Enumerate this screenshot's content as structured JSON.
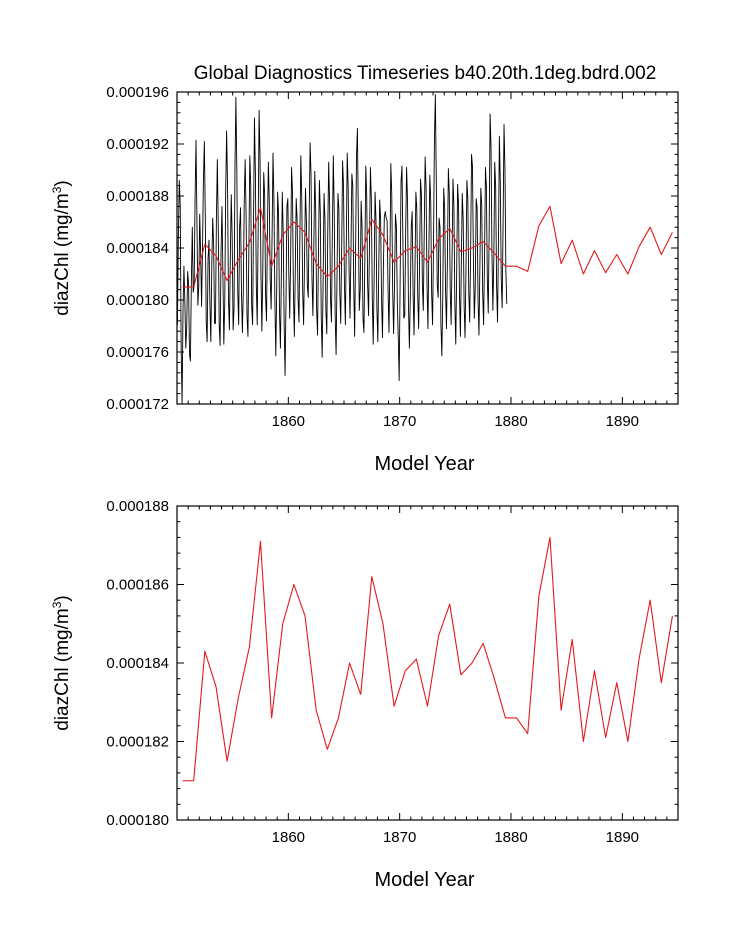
{
  "title": "Global Diagnostics Timeseries b40.20th.1deg.bdrd.002",
  "colors": {
    "monthly": "#000000",
    "annual": "#e31a1c",
    "axes": "#000000",
    "background": "#ffffff"
  },
  "chart_data": [
    {
      "type": "line",
      "title": "Global Diagnostics Timeseries b40.20th.1deg.bdrd.002",
      "xlabel": "Model Year",
      "ylabel_main": "diazChl (mg/m",
      "ylabel_sup": "3",
      "ylabel_close": ")",
      "xlim": [
        1850,
        1895
      ],
      "ylim": [
        0.000172,
        0.000196
      ],
      "x_ticks": [
        1860,
        1870,
        1880,
        1890
      ],
      "x_tick_labels": [
        "1860",
        "1870",
        "1880",
        "1890"
      ],
      "y_ticks": [
        0.000172,
        0.000176,
        0.00018,
        0.000184,
        0.000188,
        0.000192,
        0.000196
      ],
      "y_tick_labels": [
        "0.000172",
        "0.000176",
        "0.000180",
        "0.000184",
        "0.000188",
        "0.000192",
        "0.000196"
      ],
      "series": [
        {
          "name": "monthly",
          "color": "#000000",
          "x_start": 1850.04,
          "x_step": 0.08333,
          "values": [
            0.0001781,
            0.0001849,
            0.0001892,
            0.0001873,
            0.0001763,
            0.000172,
            0.0001792,
            0.0001826,
            0.0001798,
            0.0001763,
            0.000178,
            0.0001822,
            0.0001812,
            0.0001758,
            0.0001753,
            0.0001814,
            0.0001856,
            0.0001806,
            0.0001811,
            0.0001878,
            0.0001923,
            0.0001862,
            0.0001796,
            0.0001811,
            0.0001866,
            0.0001836,
            0.0001795,
            0.0001838,
            0.0001893,
            0.0001922,
            0.0001864,
            0.0001783,
            0.0001768,
            0.0001832,
            0.0001846,
            0.0001796,
            0.0001768,
            0.0001826,
            0.0001863,
            0.0001843,
            0.0001782,
            0.0001782,
            0.0001863,
            0.0001908,
            0.0001856,
            0.0001781,
            0.0001765,
            0.0001838,
            0.0001872,
            0.0001819,
            0.0001766,
            0.0001798,
            0.0001884,
            0.000193,
            0.0001888,
            0.0001801,
            0.0001777,
            0.0001833,
            0.0001881,
            0.0001848,
            0.0001777,
            0.0001794,
            0.0001902,
            0.0001956,
            0.0001901,
            0.0001806,
            0.0001781,
            0.0001856,
            0.0001871,
            0.0001806,
            0.0001775,
            0.0001807,
            0.0001876,
            0.0001908,
            0.0001865,
            0.0001787,
            0.0001772,
            0.0001841,
            0.0001911,
            0.0001888,
            0.0001796,
            0.0001781,
            0.000186,
            0.000194,
            0.0001898,
            0.0001812,
            0.0001781,
            0.0001853,
            0.0001946,
            0.0001911,
            0.0001821,
            0.0001776,
            0.0001822,
            0.0001898,
            0.0001881,
            0.0001803,
            0.0001784,
            0.0001854,
            0.0001906,
            0.0001876,
            0.0001816,
            0.0001793,
            0.0001849,
            0.0001913,
            0.0001877,
            0.0001801,
            0.0001757,
            0.0001808,
            0.0001883,
            0.0001866,
            0.000179,
            0.0001763,
            0.000182,
            0.0001883,
            0.0001852,
            0.0001782,
            0.0001742,
            0.0001798,
            0.0001872,
            0.0001878,
            0.0001822,
            0.0001786,
            0.0001831,
            0.0001902,
            0.0001883,
            0.0001806,
            0.0001772,
            0.0001822,
            0.0001878,
            0.0001862,
            0.0001801,
            0.0001783,
            0.0001851,
            0.0001911,
            0.0001879,
            0.0001806,
            0.0001781,
            0.0001833,
            0.0001886,
            0.0001861,
            0.0001811,
            0.0001802,
            0.0001866,
            0.0001921,
            0.0001896,
            0.0001817,
            0.0001788,
            0.0001841,
            0.0001899,
            0.0001868,
            0.0001793,
            0.0001773,
            0.0001836,
            0.0001892,
            0.0001867,
            0.0001787,
            0.0001756,
            0.0001813,
            0.0001882,
            0.0001862,
            0.0001792,
            0.0001774,
            0.0001851,
            0.0001906,
            0.0001875,
            0.0001801,
            0.0001783,
            0.0001853,
            0.0001911,
            0.0001868,
            0.0001788,
            0.0001758,
            0.0001818,
            0.0001882,
            0.000187,
            0.0001806,
            0.0001782,
            0.0001838,
            0.0001907,
            0.0001888,
            0.0001812,
            0.0001781,
            0.0001842,
            0.0001913,
            0.0001888,
            0.0001822,
            0.0001786,
            0.0001836,
            0.0001897,
            0.0001888,
            0.0001811,
            0.0001772,
            0.0001837,
            0.0001911,
            0.0001932,
            0.0001861,
            0.0001792,
            0.0001808,
            0.0001876,
            0.0001856,
            0.0001786,
            0.0001775,
            0.0001832,
            0.0001903,
            0.0001881,
            0.0001812,
            0.0001788,
            0.0001843,
            0.0001902,
            0.0001878,
            0.0001803,
            0.0001766,
            0.0001816,
            0.0001883,
            0.0001862,
            0.0001793,
            0.0001768,
            0.0001826,
            0.0001877,
            0.0001862,
            0.0001801,
            0.0001771,
            0.0001826,
            0.0001864,
            0.0001868,
            0.0001863,
            0.0001861,
            0.0001808,
            0.0001775,
            0.0001828,
            0.0001905,
            0.0001882,
            0.0001807,
            0.0001774,
            0.0001813,
            0.0001866,
            0.0001856,
            0.0001798,
            0.0001771,
            0.0001738,
            0.0001812,
            0.0001891,
            0.0001903,
            0.0001846,
            0.0001786,
            0.0001788,
            0.0001852,
            0.0001902,
            0.0001876,
            0.0001796,
            0.0001763,
            0.0001803,
            0.0001856,
            0.0001868,
            0.0001805,
            0.0001773,
            0.0001823,
            0.0001883,
            0.000187,
            0.0001803,
            0.0001778,
            0.0001831,
            0.0001893,
            0.0001881,
            0.0001813,
            0.0001792,
            0.0001852,
            0.000191,
            0.0001886,
            0.0001812,
            0.0001778,
            0.0001838,
            0.0001896,
            0.0001876,
            0.0001805,
            0.0001781,
            0.0001843,
            0.0001923,
            0.0001958,
            0.0001892,
            0.0001812,
            0.0001802,
            0.0001863,
            0.0001856,
            0.0001781,
            0.0001757,
            0.0001803,
            0.0001886,
            0.0001871,
            0.0001806,
            0.0001778,
            0.0001832,
            0.0001901,
            0.0001883,
            0.0001808,
            0.0001781,
            0.0001833,
            0.0001893,
            0.0001872,
            0.0001798,
            0.0001766,
            0.0001823,
            0.0001889,
            0.0001873,
            0.0001803,
            0.0001772,
            0.0001828,
            0.0001882,
            0.0001862,
            0.0001796,
            0.0001771,
            0.0001823,
            0.0001892,
            0.0001878,
            0.0001806,
            0.0001783,
            0.0001836,
            0.0001912,
            0.0001903,
            0.0001833,
            0.0001786,
            0.0001809,
            0.0001878,
            0.0001871,
            0.0001801,
            0.0001773,
            0.0001826,
            0.0001886,
            0.0001873,
            0.0001806,
            0.0001781,
            0.0001833,
            0.0001902,
            0.0001887,
            0.0001816,
            0.000179,
            0.0001853,
            0.0001943,
            0.0001918,
            0.0001836,
            0.0001792,
            0.0001831,
            0.0001906,
            0.0001887,
            0.0001811,
            0.0001783,
            0.0001843,
            0.0001926,
            0.000189,
            0.0001816,
            0.0001794,
            0.0001858,
            0.0001935,
            0.0001902,
            0.0001822,
            0.0001797
          ]
        },
        {
          "name": "annual",
          "color": "#e31a1c",
          "x": [
            1850.5,
            1851.5,
            1852.5,
            1853.5,
            1854.5,
            1855.5,
            1856.5,
            1857.5,
            1858.5,
            1859.5,
            1860.5,
            1861.5,
            1862.5,
            1863.5,
            1864.5,
            1865.5,
            1866.5,
            1867.5,
            1868.5,
            1869.5,
            1870.5,
            1871.5,
            1872.5,
            1873.5,
            1874.5,
            1875.5,
            1876.5,
            1877.5,
            1878.5,
            1879.5,
            1880.5,
            1881.5,
            1882.5,
            1883.5,
            1884.5,
            1885.5,
            1886.5,
            1887.5,
            1888.5,
            1889.5,
            1890.5,
            1891.5,
            1892.5,
            1893.5,
            1894.5
          ],
          "values": [
            0.000181,
            0.000181,
            0.0001843,
            0.0001834,
            0.0001815,
            0.0001831,
            0.0001844,
            0.0001871,
            0.0001826,
            0.000185,
            0.000186,
            0.0001852,
            0.0001828,
            0.0001818,
            0.0001826,
            0.000184,
            0.0001832,
            0.0001862,
            0.000185,
            0.0001829,
            0.0001838,
            0.0001841,
            0.0001829,
            0.0001847,
            0.0001855,
            0.0001837,
            0.000184,
            0.0001845,
            0.0001836,
            0.0001826,
            0.0001826,
            0.0001822,
            0.0001857,
            0.0001872,
            0.0001828,
            0.0001846,
            0.000182,
            0.0001838,
            0.0001821,
            0.0001835,
            0.000182,
            0.0001841,
            0.0001856,
            0.0001835,
            0.0001852
          ]
        }
      ]
    },
    {
      "type": "line",
      "title": "",
      "xlabel": "Model Year",
      "ylabel_main": "diazChl (mg/m",
      "ylabel_sup": "3",
      "ylabel_close": ")",
      "xlim": [
        1850,
        1895
      ],
      "ylim": [
        0.00018,
        0.000188
      ],
      "x_ticks": [
        1860,
        1870,
        1880,
        1890
      ],
      "x_tick_labels": [
        "1860",
        "1870",
        "1880",
        "1890"
      ],
      "y_ticks": [
        0.00018,
        0.000182,
        0.000184,
        0.000186,
        0.000188
      ],
      "y_tick_labels": [
        "0.000180",
        "0.000182",
        "0.000184",
        "0.000186",
        "0.000188"
      ],
      "series": [
        {
          "name": "annual",
          "color": "#e31a1c",
          "x": [
            1850.5,
            1851.5,
            1852.5,
            1853.5,
            1854.5,
            1855.5,
            1856.5,
            1857.5,
            1858.5,
            1859.5,
            1860.5,
            1861.5,
            1862.5,
            1863.5,
            1864.5,
            1865.5,
            1866.5,
            1867.5,
            1868.5,
            1869.5,
            1870.5,
            1871.5,
            1872.5,
            1873.5,
            1874.5,
            1875.5,
            1876.5,
            1877.5,
            1878.5,
            1879.5,
            1880.5,
            1881.5,
            1882.5,
            1883.5,
            1884.5,
            1885.5,
            1886.5,
            1887.5,
            1888.5,
            1889.5,
            1890.5,
            1891.5,
            1892.5,
            1893.5,
            1894.5
          ],
          "values": [
            0.000181,
            0.000181,
            0.0001843,
            0.0001834,
            0.0001815,
            0.0001831,
            0.0001844,
            0.0001871,
            0.0001826,
            0.000185,
            0.000186,
            0.0001852,
            0.0001828,
            0.0001818,
            0.0001826,
            0.000184,
            0.0001832,
            0.0001862,
            0.000185,
            0.0001829,
            0.0001838,
            0.0001841,
            0.0001829,
            0.0001847,
            0.0001855,
            0.0001837,
            0.000184,
            0.0001845,
            0.0001836,
            0.0001826,
            0.0001826,
            0.0001822,
            0.0001857,
            0.0001872,
            0.0001828,
            0.0001846,
            0.000182,
            0.0001838,
            0.0001821,
            0.0001835,
            0.000182,
            0.0001841,
            0.0001856,
            0.0001835,
            0.0001852
          ]
        }
      ]
    }
  ]
}
